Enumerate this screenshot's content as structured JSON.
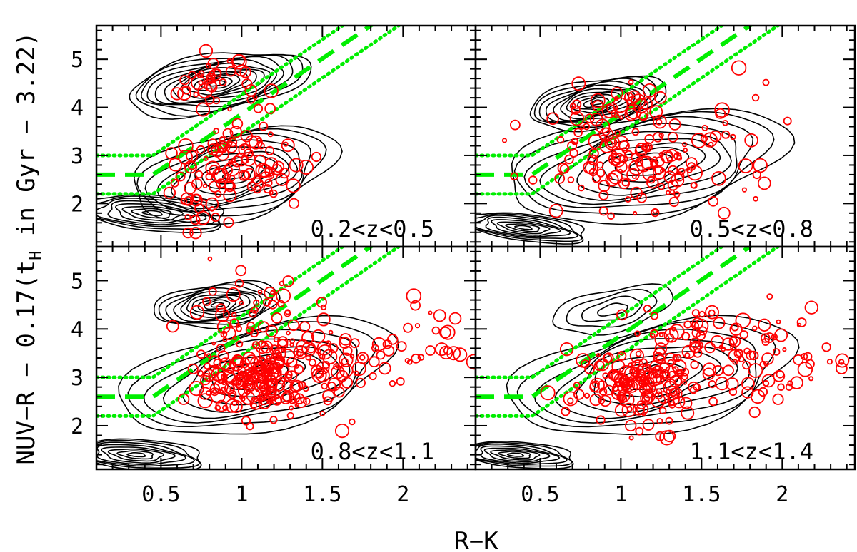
{
  "chart_data": {
    "type": "scatter",
    "xlabel": "R−K",
    "ylabel": "NUV−R − 0.17(t",
    "ylabel_sub": "H",
    "ylabel_tail": " in Gyr − 3.22)",
    "xlim": [
      0.1,
      2.45
    ],
    "ylim": [
      1.1,
      5.7
    ],
    "x_ticks": [
      0.5,
      1,
      1.5,
      2
    ],
    "x_tick_labels": [
      "0.5",
      "1",
      "1.5",
      "2"
    ],
    "y_ticks": [
      2,
      3,
      4,
      5
    ],
    "y_tick_labels": [
      "2",
      "3",
      "4",
      "5"
    ],
    "colors": {
      "points": "#ff0000",
      "divider": "#00ee00",
      "contours": "#000000"
    },
    "divider": {
      "dashed": {
        "flat_y": 2.6,
        "knee_x": 0.45,
        "slope": 2.3
      },
      "dotted_offsets": [
        0.4,
        -0.4
      ]
    },
    "panels": [
      {
        "label": "0.2<z<0.5",
        "clusters": [
          {
            "cx": 0.85,
            "cy": 4.6,
            "sx": 0.12,
            "sy": 0.35,
            "n": 36
          },
          {
            "cx": 1.0,
            "cy": 2.9,
            "sx": 0.2,
            "sy": 0.45,
            "n": 90
          },
          {
            "cx": 0.75,
            "cy": 2.1,
            "sx": 0.12,
            "sy": 0.35,
            "n": 24
          }
        ],
        "contours": [
          {
            "cx": 0.85,
            "cy": 4.5,
            "a": 0.45,
            "b": 0.75,
            "rot": -0.6,
            "n": 12
          },
          {
            "cx": 0.95,
            "cy": 2.6,
            "a": 0.55,
            "b": 1.05,
            "rot": -0.35,
            "n": 10
          },
          {
            "cx": 0.45,
            "cy": 1.8,
            "a": 0.5,
            "b": 0.35,
            "rot": -0.5,
            "n": 8
          }
        ]
      },
      {
        "label": "0.5<z<0.8",
        "clusters": [
          {
            "cx": 0.95,
            "cy": 4.1,
            "sx": 0.15,
            "sy": 0.35,
            "n": 28
          },
          {
            "cx": 1.15,
            "cy": 2.9,
            "sx": 0.28,
            "sy": 0.5,
            "n": 140
          },
          {
            "cx": 1.9,
            "cy": 3.3,
            "sx": 0.25,
            "sy": 0.55,
            "n": 10
          }
        ],
        "contours": [
          {
            "cx": 0.85,
            "cy": 4.1,
            "a": 0.35,
            "b": 0.6,
            "rot": -0.5,
            "n": 11
          },
          {
            "cx": 1.15,
            "cy": 2.8,
            "a": 0.75,
            "b": 1.25,
            "rot": -0.45,
            "n": 10
          },
          {
            "cx": 0.4,
            "cy": 1.5,
            "a": 0.45,
            "b": 0.25,
            "rot": -0.55,
            "n": 8
          }
        ]
      },
      {
        "label": "0.8<z<1.1",
        "clusters": [
          {
            "cx": 0.95,
            "cy": 4.4,
            "sx": 0.15,
            "sy": 0.3,
            "n": 30
          },
          {
            "cx": 1.05,
            "cy": 2.95,
            "sx": 0.16,
            "sy": 0.35,
            "n": 170
          },
          {
            "cx": 1.45,
            "cy": 3.4,
            "sx": 0.25,
            "sy": 0.55,
            "n": 110
          },
          {
            "cx": 2.1,
            "cy": 3.9,
            "sx": 0.25,
            "sy": 0.4,
            "n": 20
          }
        ],
        "contours": [
          {
            "cx": 0.85,
            "cy": 4.5,
            "a": 0.35,
            "b": 0.5,
            "rot": -0.5,
            "n": 10
          },
          {
            "cx": 1.1,
            "cy": 3.0,
            "a": 0.7,
            "b": 1.3,
            "rot": -0.45,
            "n": 9
          },
          {
            "cx": 0.35,
            "cy": 1.4,
            "a": 0.45,
            "b": 0.3,
            "rot": -0.4,
            "n": 8
          }
        ]
      },
      {
        "label": "1.1<z<1.4",
        "clusters": [
          {
            "cx": 1.1,
            "cy": 2.8,
            "sx": 0.2,
            "sy": 0.4,
            "n": 130
          },
          {
            "cx": 1.5,
            "cy": 3.5,
            "sx": 0.3,
            "sy": 0.5,
            "n": 110
          },
          {
            "cx": 2.1,
            "cy": 3.6,
            "sx": 0.2,
            "sy": 0.5,
            "n": 25
          }
        ],
        "contours": [
          {
            "cx": 0.95,
            "cy": 4.4,
            "a": 0.3,
            "b": 0.55,
            "rot": -0.5,
            "n": 4
          },
          {
            "cx": 1.2,
            "cy": 3.0,
            "a": 0.75,
            "b": 1.3,
            "rot": -0.45,
            "n": 9
          },
          {
            "cx": 0.35,
            "cy": 1.4,
            "a": 0.4,
            "b": 0.25,
            "rot": -0.4,
            "n": 8
          }
        ]
      }
    ]
  }
}
